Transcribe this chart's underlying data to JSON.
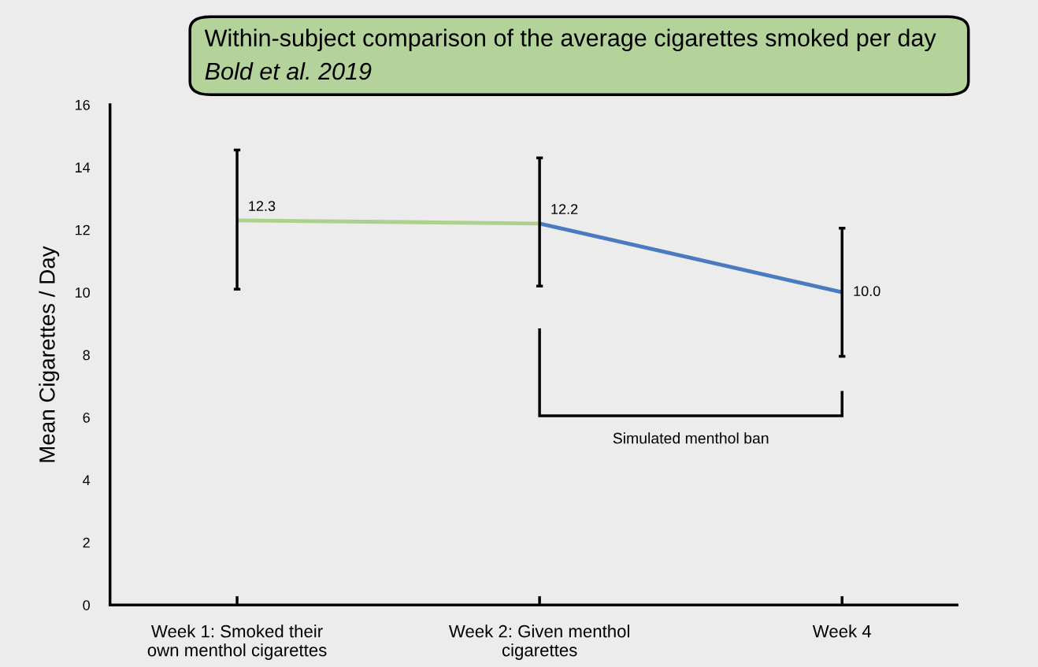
{
  "chart_data": {
    "type": "line",
    "title": "Within-subject comparison of the average cigarettes smoked per day",
    "subtitle": "Bold et al. 2019",
    "ylabel": "Mean Cigarettes / Day",
    "categories": [
      "Week 1: Smoked their\nown menthol cigarettes",
      "Week 2: Given menthol\ncigarettes",
      "Week 4"
    ],
    "ylim": [
      0,
      16
    ],
    "yticks": [
      0,
      2,
      4,
      6,
      8,
      10,
      12,
      14,
      16
    ],
    "grid": false,
    "legend": false,
    "marker": "none",
    "line_style": "solid",
    "series": [
      {
        "color": "#aed08f",
        "values": [
          12.3,
          12.2,
          null
        ],
        "errors": [
          [
            10.1,
            14.55
          ],
          [
            10.2,
            14.3
          ],
          null
        ],
        "value_labels": [
          "12.3",
          "12.2",
          null
        ]
      },
      {
        "color": "#4a7bc0",
        "values": [
          null,
          12.2,
          10.0
        ],
        "errors": [
          null,
          null,
          [
            7.95,
            12.05
          ]
        ],
        "value_labels": [
          null,
          null,
          "10.0"
        ]
      }
    ],
    "annotations": [
      "Simulated menthol ban"
    ]
  }
}
